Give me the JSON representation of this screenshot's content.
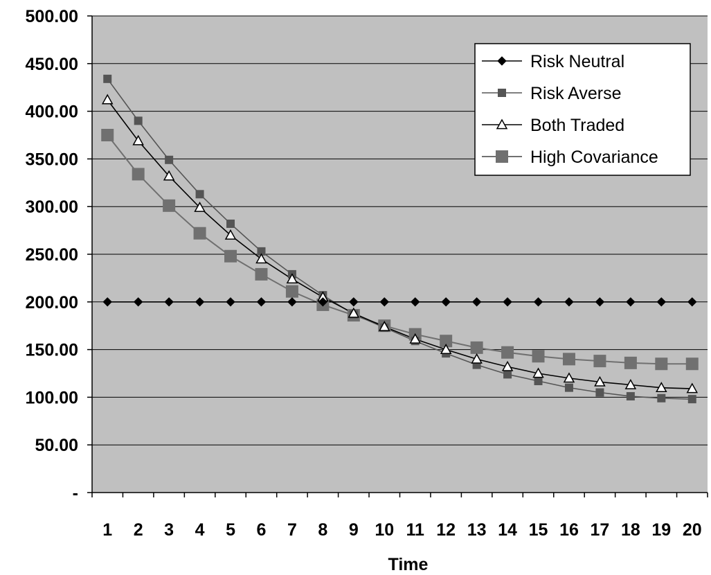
{
  "chart_data": {
    "type": "line",
    "title": "",
    "xlabel": "Time",
    "ylabel": "",
    "categories": [
      "1",
      "2",
      "3",
      "4",
      "5",
      "6",
      "7",
      "8",
      "9",
      "10",
      "11",
      "12",
      "13",
      "14",
      "15",
      "16",
      "17",
      "18",
      "19",
      "20"
    ],
    "ylim": [
      0,
      500
    ],
    "y_ticks": [
      0,
      50,
      100,
      150,
      200,
      250,
      300,
      350,
      400,
      450,
      500
    ],
    "y_tick_labels": [
      "-",
      "50.00",
      "100.00",
      "150.00",
      "200.00",
      "250.00",
      "300.00",
      "350.00",
      "400.00",
      "450.00",
      "500.00"
    ],
    "grid": true,
    "legend_position": "top-right",
    "background_color": "#c0c0c0",
    "series": [
      {
        "name": "Risk Neutral",
        "marker": "diamond",
        "color": "#000000",
        "values": [
          200,
          200,
          200,
          200,
          200,
          200,
          200,
          200,
          200,
          200,
          200,
          200,
          200,
          200,
          200,
          200,
          200,
          200,
          200,
          200
        ]
      },
      {
        "name": "Risk Averse",
        "marker": "square",
        "color": "#555555",
        "values": [
          434,
          390,
          349,
          313,
          282,
          253,
          229,
          207,
          187,
          173,
          159,
          146,
          134,
          124,
          117,
          110,
          105,
          101,
          99,
          98
        ]
      },
      {
        "name": "Both Traded",
        "marker": "triangle",
        "color": "#000000",
        "values": [
          412,
          369,
          332,
          299,
          270,
          245,
          224,
          205,
          188,
          174,
          161,
          150,
          140,
          132,
          125,
          120,
          116,
          113,
          110,
          109
        ]
      },
      {
        "name": "High Covariance",
        "marker": "square-large",
        "color": "#707070",
        "values": [
          375,
          334,
          301,
          272,
          248,
          229,
          211,
          197,
          186,
          175,
          166,
          159,
          152,
          147,
          143,
          140,
          138,
          136,
          135,
          135
        ]
      }
    ]
  }
}
